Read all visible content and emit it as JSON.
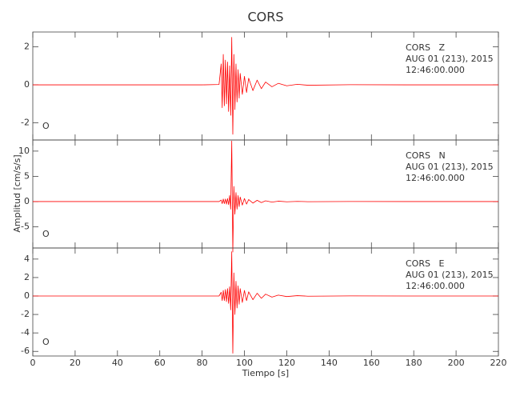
{
  "chart_data": [
    {
      "type": "line",
      "title": "CORS",
      "annotations": [
        "CORS   Z",
        "AUG 01 (213), 2015",
        "12:46:00.000"
      ],
      "corner_label": "O",
      "x": [
        0,
        20,
        40,
        60,
        80,
        88,
        89,
        89.5,
        90,
        90.5,
        91,
        91.5,
        92,
        92.5,
        93,
        93.5,
        94,
        94.5,
        95,
        95.5,
        96,
        96.5,
        97,
        97.5,
        98,
        99,
        100,
        101,
        102,
        104,
        106,
        108,
        110,
        113,
        116,
        120,
        125,
        130,
        150,
        180,
        200,
        220
      ],
      "series": [
        {
          "color": "#ff0000",
          "values": [
            0,
            0,
            0,
            0,
            0,
            0.02,
            1.1,
            -1.2,
            1.6,
            -1.1,
            1.3,
            -1.0,
            1.2,
            -1.4,
            1.0,
            -1.6,
            2.5,
            -2.6,
            1.6,
            -1.3,
            1.1,
            -0.9,
            0.8,
            -0.7,
            0.6,
            -0.5,
            0.45,
            -0.4,
            0.35,
            -0.3,
            0.25,
            -0.2,
            0.15,
            -0.1,
            0.08,
            -0.05,
            0.03,
            -0.02,
            0.01,
            0,
            0,
            0
          ]
        }
      ],
      "xlim": [
        0,
        220
      ],
      "xticks": [
        0,
        20,
        40,
        60,
        80,
        100,
        120,
        140,
        160,
        180,
        200,
        220
      ],
      "ylim": [
        -2.9,
        2.78
      ],
      "yticks": [
        2,
        0,
        -2
      ]
    },
    {
      "type": "line",
      "ylabel": "Amplitud [cm/s/s]",
      "annotations": [
        "CORS   N",
        "AUG 01 (213), 2015",
        "12:46:00.000"
      ],
      "corner_label": "O",
      "x": [
        0,
        20,
        40,
        60,
        80,
        88,
        89,
        89.5,
        90,
        90.5,
        91,
        91.5,
        92,
        92.5,
        93,
        93.5,
        94,
        94.5,
        95,
        95.5,
        96,
        96.5,
        97,
        97.5,
        98,
        99,
        100,
        101,
        102,
        104,
        106,
        108,
        110,
        113,
        116,
        120,
        125,
        130,
        150,
        180,
        200,
        220
      ],
      "series": [
        {
          "color": "#ff0000",
          "values": [
            0,
            0,
            0,
            0,
            0,
            0,
            0.3,
            -0.4,
            0.5,
            -0.4,
            0.5,
            -0.5,
            0.6,
            -0.6,
            1.2,
            -1.5,
            12,
            -10,
            3,
            -2.5,
            1.8,
            -1.5,
            1.2,
            -1,
            0.9,
            -0.7,
            0.6,
            -0.5,
            0.4,
            -0.3,
            0.25,
            -0.2,
            0.15,
            -0.1,
            0.08,
            -0.05,
            0.03,
            -0.02,
            0.01,
            0,
            0,
            0
          ]
        }
      ],
      "xlim": [
        0,
        220
      ],
      "xticks": [
        0,
        20,
        40,
        60,
        80,
        100,
        120,
        140,
        160,
        180,
        200,
        220
      ],
      "ylim": [
        -9.2,
        12.2
      ],
      "yticks": [
        10,
        5,
        0,
        -5
      ]
    },
    {
      "type": "line",
      "xlabel": "Tiempo [s]",
      "annotations": [
        "CORS   E",
        "AUG 01 (213), 2015",
        "12:46:00.000"
      ],
      "corner_label": "O",
      "x": [
        0,
        20,
        40,
        60,
        80,
        88,
        89,
        89.5,
        90,
        90.5,
        91,
        91.5,
        92,
        92.5,
        93,
        93.5,
        94,
        94.5,
        95,
        95.5,
        96,
        96.5,
        97,
        97.5,
        98,
        99,
        100,
        101,
        102,
        104,
        106,
        108,
        110,
        113,
        116,
        120,
        125,
        130,
        150,
        180,
        200,
        220
      ],
      "series": [
        {
          "color": "#ff0000",
          "values": [
            0,
            0,
            0,
            0,
            0,
            0,
            0.4,
            -0.5,
            0.6,
            -0.5,
            0.7,
            -0.6,
            0.8,
            -0.8,
            1.0,
            -1.5,
            4.8,
            -6.2,
            2.5,
            -2,
            1.6,
            -1.3,
            1.1,
            -0.9,
            0.8,
            -0.7,
            0.6,
            -0.5,
            0.45,
            -0.4,
            0.3,
            -0.25,
            0.2,
            -0.12,
            0.1,
            -0.06,
            0.04,
            -0.02,
            0.01,
            0,
            0,
            0
          ]
        }
      ],
      "xlim": [
        0,
        220
      ],
      "xticks": [
        0,
        20,
        40,
        60,
        80,
        100,
        120,
        140,
        160,
        180,
        200,
        220
      ],
      "ylim": [
        -6.5,
        5.2
      ],
      "yticks": [
        4,
        2,
        0,
        -2,
        -4,
        -6
      ]
    }
  ]
}
